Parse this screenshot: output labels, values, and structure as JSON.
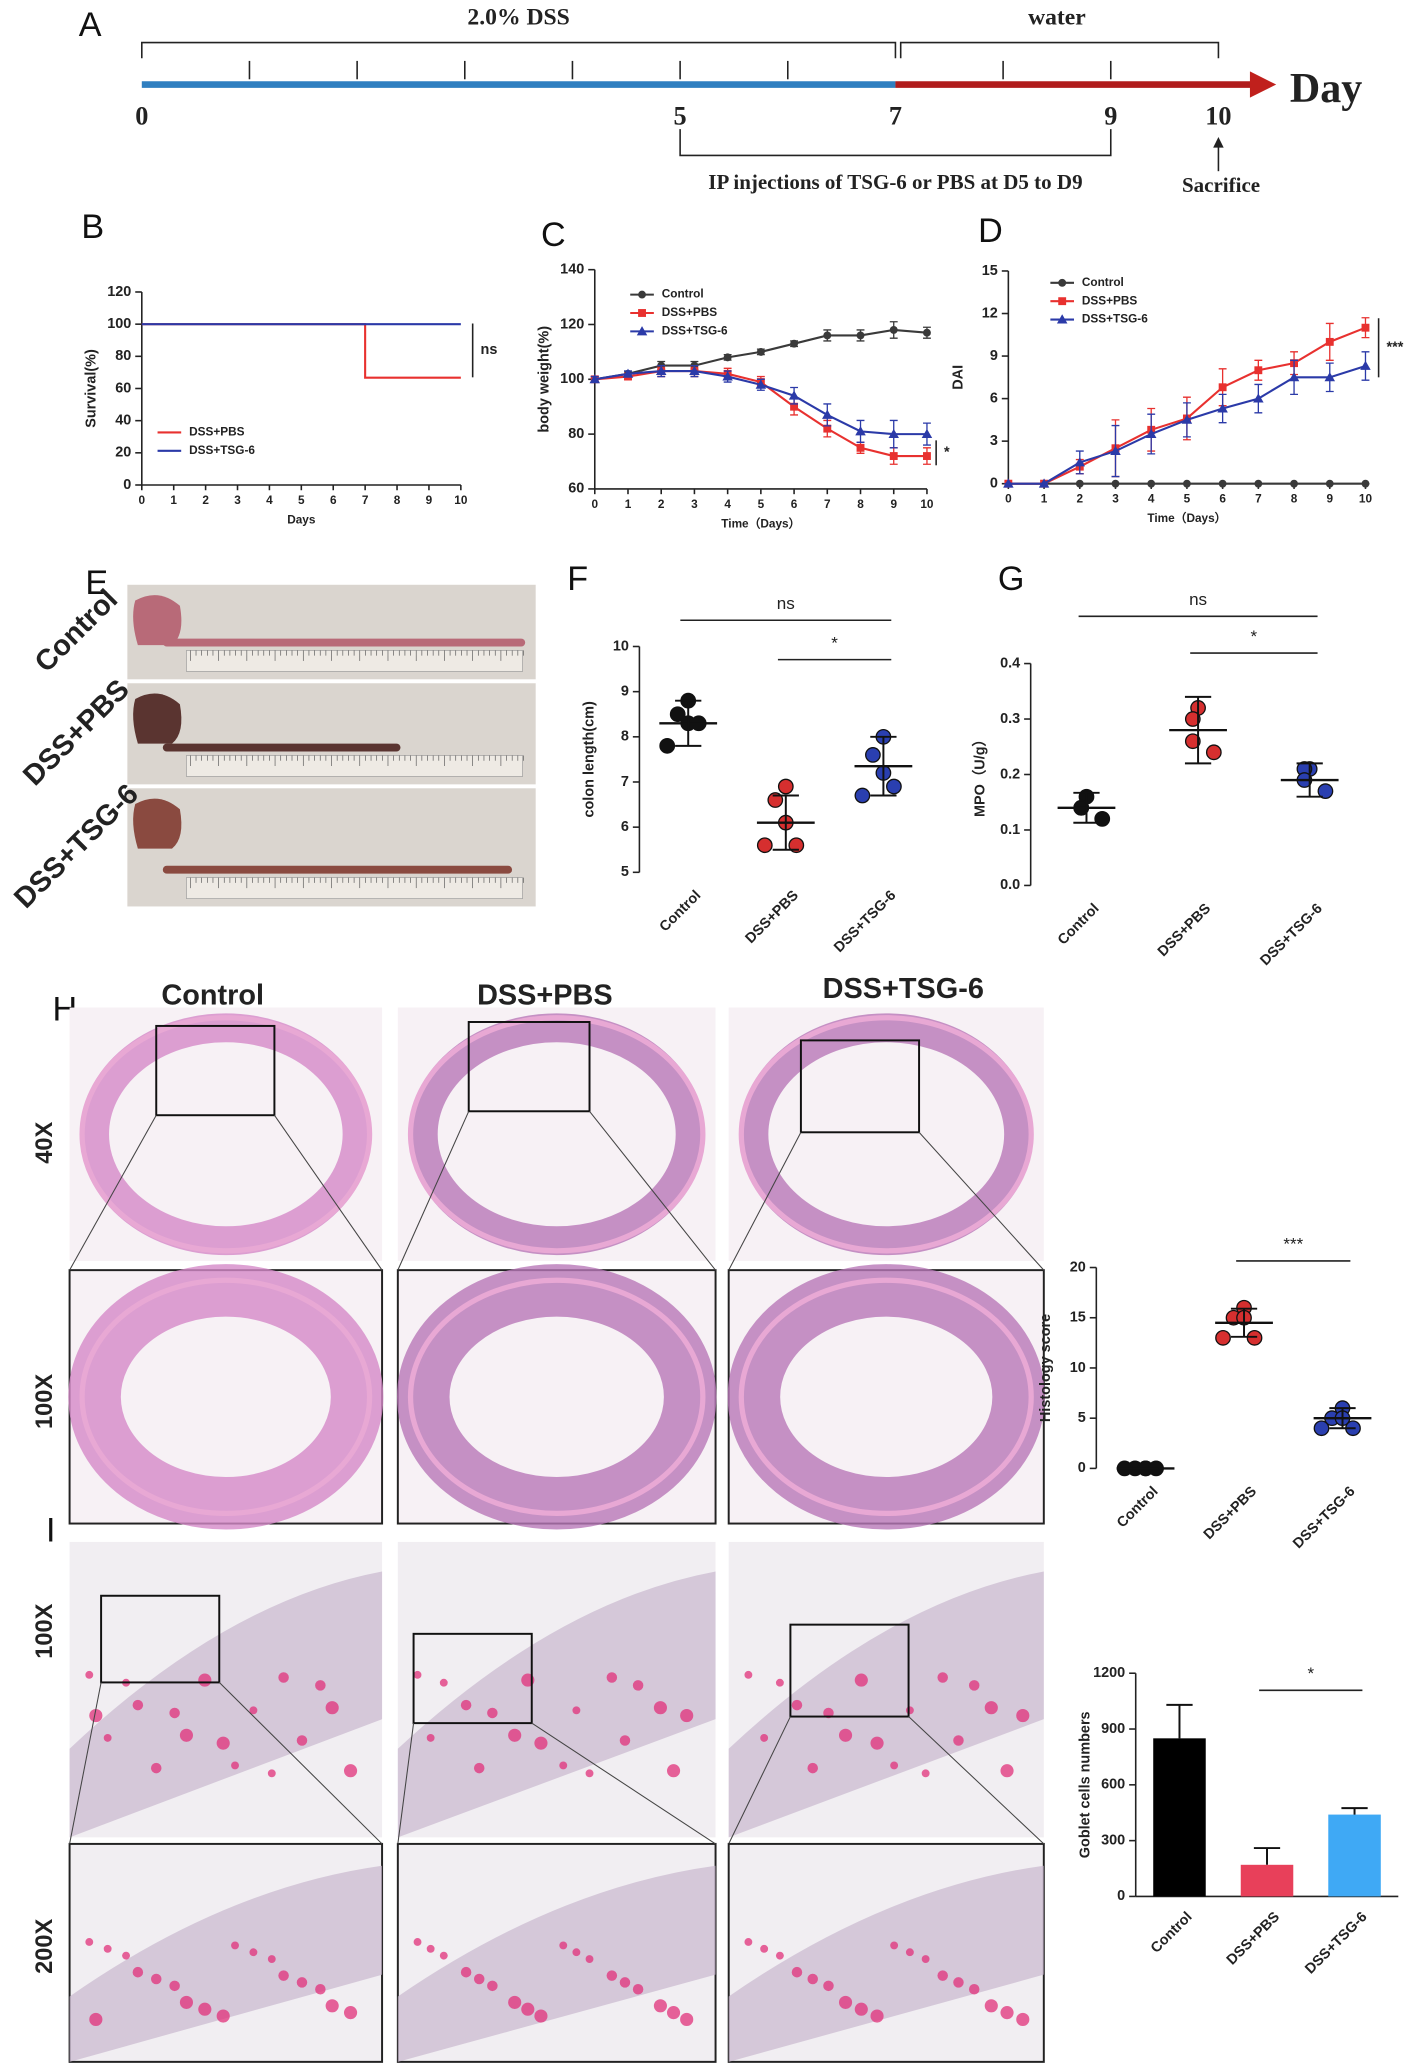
{
  "panels": [
    "A",
    "B",
    "C",
    "D",
    "E",
    "F",
    "G",
    "H",
    "I"
  ],
  "timeline": {
    "phases": [
      "2.0% DSS",
      "water"
    ],
    "axis_label": "Day",
    "days": [
      0,
      5,
      7,
      9,
      10
    ],
    "injection": "IP injections of TSG-6 or PBS at D5 to D9",
    "endpoint": "Sacrifice"
  },
  "images": {
    "colon_groups": [
      "Control",
      "DSS+PBS",
      "DSS+TSG-6"
    ],
    "histology_groups": [
      "Control",
      "DSS+PBS",
      "DSS+TSG-6"
    ],
    "magnifications": [
      "40X",
      "100X",
      "100X",
      "200X"
    ]
  },
  "chart_data": [
    {
      "type": "line",
      "step": true,
      "xlabel": "Days",
      "ylabel": "Survival(%)",
      "x": [
        0,
        1,
        2,
        3,
        4,
        5,
        6,
        7,
        8,
        9,
        10
      ],
      "series": [
        {
          "name": "DSS+PBS",
          "color": "#e8312f",
          "values": [
            100,
            100,
            100,
            100,
            100,
            100,
            100,
            66.7,
            66.7,
            66.7,
            66.7
          ]
        },
        {
          "name": "DSS+TSG-6",
          "color": "#2b3aa8",
          "values": [
            100,
            100,
            100,
            100,
            100,
            100,
            100,
            100,
            100,
            100,
            100
          ]
        }
      ],
      "xlim": [
        0,
        10
      ],
      "ylim": [
        0,
        120
      ],
      "xticks": [
        0,
        1,
        2,
        3,
        4,
        5,
        6,
        7,
        8,
        9,
        10
      ],
      "yticks": [
        0,
        20,
        40,
        60,
        80,
        100,
        120
      ],
      "annotations": [
        "ns"
      ],
      "legend": "lower left"
    },
    {
      "type": "line",
      "xlabel": "Time（Days）",
      "ylabel": "body weight(%)",
      "x": [
        0,
        1,
        2,
        3,
        4,
        5,
        6,
        7,
        8,
        9,
        10
      ],
      "series": [
        {
          "name": "Control",
          "color": "#3a3a3a",
          "marker": "circle",
          "values": [
            100,
            102,
            105,
            105,
            108,
            110,
            113,
            116,
            116,
            118,
            117
          ],
          "errors": [
            1,
            1,
            1.5,
            1.5,
            1,
            1,
            1,
            2,
            2,
            3,
            2
          ]
        },
        {
          "name": "DSS+PBS",
          "color": "#e8312f",
          "marker": "square",
          "values": [
            100,
            101,
            103,
            103,
            102,
            99,
            90,
            82,
            75,
            72,
            72
          ],
          "errors": [
            1,
            1,
            2,
            2,
            2,
            2,
            3,
            3,
            2,
            3,
            3
          ]
        },
        {
          "name": "DSS+TSG-6",
          "color": "#2b3aa8",
          "marker": "triangle",
          "values": [
            100,
            102,
            103,
            103,
            101,
            98,
            94,
            87,
            81,
            80,
            80
          ],
          "errors": [
            1,
            1,
            2,
            2,
            2,
            2,
            3,
            4,
            4,
            5,
            4
          ]
        }
      ],
      "xlim": [
        0,
        10
      ],
      "ylim": [
        60,
        140
      ],
      "xticks": [
        0,
        1,
        2,
        3,
        4,
        5,
        6,
        7,
        8,
        9,
        10
      ],
      "yticks": [
        60,
        80,
        100,
        120,
        140
      ],
      "annotations": [
        "*"
      ],
      "legend": "upper left"
    },
    {
      "type": "line",
      "xlabel": "Time（Days）",
      "ylabel": "DAI",
      "x": [
        0,
        1,
        2,
        3,
        4,
        5,
        6,
        7,
        8,
        9,
        10
      ],
      "series": [
        {
          "name": "Control",
          "color": "#3a3a3a",
          "marker": "circle",
          "values": [
            0,
            0,
            0,
            0,
            0,
            0,
            0,
            0,
            0,
            0,
            0
          ],
          "errors": [
            0,
            0,
            0,
            0,
            0,
            0,
            0,
            0,
            0,
            0,
            0
          ]
        },
        {
          "name": "DSS+PBS",
          "color": "#e8312f",
          "marker": "square",
          "values": [
            0,
            0,
            1.2,
            2.5,
            3.8,
            4.6,
            6.8,
            8,
            8.5,
            10,
            11
          ],
          "errors": [
            0,
            0,
            0.5,
            2,
            1.5,
            1.5,
            1.3,
            0.7,
            0.8,
            1.3,
            0.7
          ]
        },
        {
          "name": "DSS+TSG-6",
          "color": "#2b3aa8",
          "marker": "triangle",
          "values": [
            0,
            0,
            1.5,
            2.3,
            3.5,
            4.5,
            5.3,
            6,
            7.5,
            7.5,
            8.3
          ],
          "errors": [
            0,
            0,
            0.8,
            1.8,
            1.4,
            1.2,
            1,
            1,
            1.2,
            1,
            1
          ]
        }
      ],
      "xlim": [
        0,
        10
      ],
      "ylim": [
        0,
        15
      ],
      "xticks": [
        0,
        1,
        2,
        3,
        4,
        5,
        6,
        7,
        8,
        9,
        10
      ],
      "yticks": [
        0,
        3,
        6,
        9,
        12,
        15
      ],
      "annotations": [
        "***"
      ],
      "legend": "upper left"
    },
    {
      "type": "dotplot",
      "ylabel": "colon length(cm)",
      "categories": [
        "Control",
        "DSS+PBS",
        "DSS+TSG-6"
      ],
      "colors": [
        "#111111",
        "#d62f2f",
        "#2a3fb0"
      ],
      "points": [
        [
          8.8,
          8.5,
          8.3,
          8.3,
          7.8
        ],
        [
          6.9,
          6.6,
          6.1,
          5.6,
          5.6
        ],
        [
          8.0,
          7.6,
          7.2,
          6.9,
          6.7
        ]
      ],
      "means": [
        8.3,
        6.1,
        7.35
      ],
      "sd": [
        0.5,
        0.6,
        0.65
      ],
      "ylim": [
        5,
        10
      ],
      "yticks": [
        5,
        6,
        7,
        8,
        9,
        10
      ],
      "annotations": [
        "ns",
        "*"
      ]
    },
    {
      "type": "dotplot",
      "ylabel": "MPO（U/g）",
      "categories": [
        "Control",
        "DSS+PBS",
        "DSS+TSG-6"
      ],
      "colors": [
        "#111111",
        "#d62f2f",
        "#2a3fb0"
      ],
      "points": [
        [
          0.16,
          0.14,
          0.14,
          0.12
        ],
        [
          0.32,
          0.3,
          0.26,
          0.24
        ],
        [
          0.21,
          0.21,
          0.19,
          0.17
        ]
      ],
      "means": [
        0.14,
        0.28,
        0.19
      ],
      "sd": [
        0.027,
        0.06,
        0.03
      ],
      "ylim": [
        0,
        0.4
      ],
      "yticks": [
        {
          "value": 0,
          "label": "0.0"
        },
        0.1,
        0.2,
        0.3,
        0.4
      ],
      "annotations": [
        "ns",
        "*"
      ]
    },
    {
      "type": "dotplot",
      "ylabel": "Histology score",
      "categories": [
        "Control",
        "DSS+PBS",
        "DSS+TSG-6"
      ],
      "colors": [
        "#111111",
        "#d62f2f",
        "#2a3fb0"
      ],
      "points": [
        [
          0,
          0,
          0,
          0,
          0
        ],
        [
          16,
          15,
          15,
          13,
          13
        ],
        [
          6,
          5,
          5,
          4,
          4
        ]
      ],
      "means": [
        0,
        14.5,
        5
      ],
      "sd": [
        0,
        1.4,
        1
      ],
      "ylim": [
        0,
        20
      ],
      "yticks": [
        0,
        5,
        10,
        15,
        20
      ],
      "annotations": [
        "***"
      ]
    },
    {
      "type": "bar",
      "ylabel": "Goblet cells numbers",
      "categories": [
        "Control",
        "DSS+PBS",
        "DSS+TSG-6"
      ],
      "colors": [
        "#000000",
        "#e8405a",
        "#3fa9f5"
      ],
      "values": [
        850,
        170,
        440
      ],
      "errors": [
        180,
        90,
        35
      ],
      "ylim": [
        0,
        1200
      ],
      "yticks": [
        0,
        300,
        600,
        900,
        1200
      ],
      "annotations": [
        "*"
      ]
    }
  ]
}
